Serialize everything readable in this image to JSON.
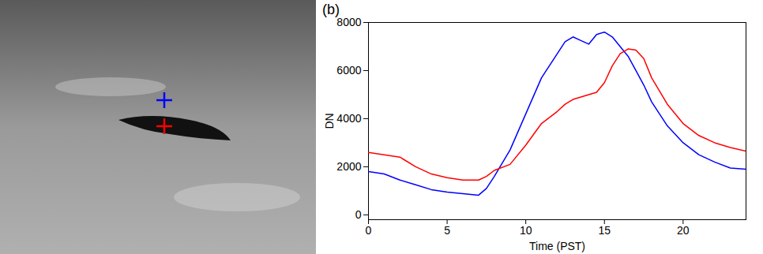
{
  "chart_data": {
    "type": "line",
    "title": "(b)",
    "x_label": "Time (PST)",
    "y_label": "DN",
    "x": [
      0,
      1,
      2,
      3,
      4,
      5,
      6,
      7,
      7.5,
      8,
      9,
      10,
      11,
      12,
      12.5,
      13,
      13.5,
      14,
      14.5,
      15,
      15.5,
      16,
      16.5,
      17,
      17.5,
      18,
      19,
      20,
      21,
      22,
      23,
      24
    ],
    "series": [
      {
        "color": "#0000ff",
        "values": [
          1800,
          1700,
          1450,
          1250,
          1050,
          950,
          880,
          820,
          1100,
          1600,
          2700,
          4200,
          5700,
          6700,
          7200,
          7400,
          7250,
          7100,
          7500,
          7600,
          7400,
          7000,
          6600,
          6000,
          5400,
          4700,
          3700,
          3000,
          2500,
          2200,
          1950,
          1900
        ]
      },
      {
        "color": "#ff0000",
        "values": [
          2600,
          2500,
          2400,
          2000,
          1700,
          1550,
          1450,
          1450,
          1600,
          1850,
          2100,
          2900,
          3800,
          4300,
          4600,
          4800,
          4900,
          5000,
          5100,
          5500,
          6200,
          6700,
          6900,
          6850,
          6500,
          5700,
          4600,
          3800,
          3300,
          3000,
          2800,
          2650
        ]
      }
    ],
    "xlim": [
      0,
      24
    ],
    "xticks": [
      0,
      5,
      10,
      15,
      20
    ],
    "ylim": [
      -200,
      8000
    ],
    "yticks": [
      0,
      2000,
      4000,
      6000,
      8000
    ],
    "grid": false
  }
}
